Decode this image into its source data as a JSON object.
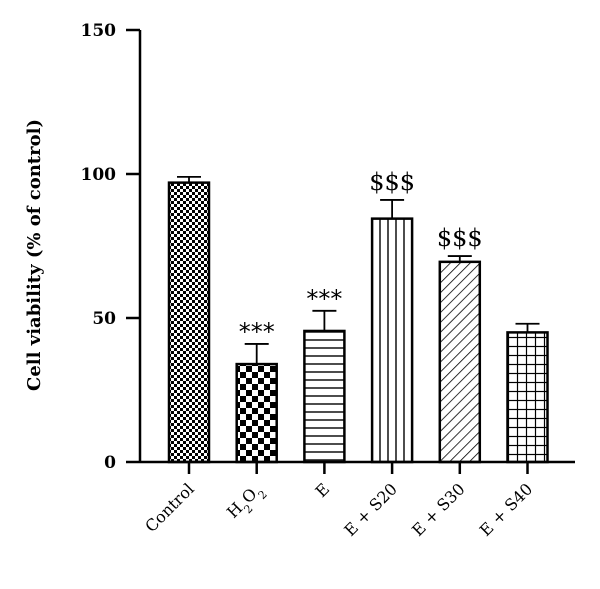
{
  "chart_data": {
    "type": "bar",
    "title": "",
    "xlabel": "",
    "ylabel": "Cell viability (% of control)",
    "ylim": [
      0,
      150
    ],
    "yticks": [
      0,
      50,
      100,
      150
    ],
    "grid": false,
    "legend": "none",
    "categories": [
      "Control",
      "H",
      "E",
      "E + S20",
      "E + S30",
      "E + S40"
    ],
    "category_subscripts": [
      "",
      "2",
      "",
      "",
      "",
      ""
    ],
    "category_suffix": [
      "",
      "O",
      "",
      "",
      "",
      ""
    ],
    "values": [
      97,
      34,
      45.5,
      84.5,
      69.5,
      45
    ],
    "errors": [
      2,
      7,
      7,
      6.5,
      2,
      3
    ],
    "annotations": [
      "",
      "***",
      "***",
      "$$$",
      "$$$",
      ""
    ],
    "patterns": [
      "checker-fine",
      "checker-large",
      "horizontal-lines",
      "vertical-lines",
      "diagonal-lines",
      "grid-lines"
    ],
    "bar_color": "#000000",
    "background_color": "#ffffff"
  }
}
